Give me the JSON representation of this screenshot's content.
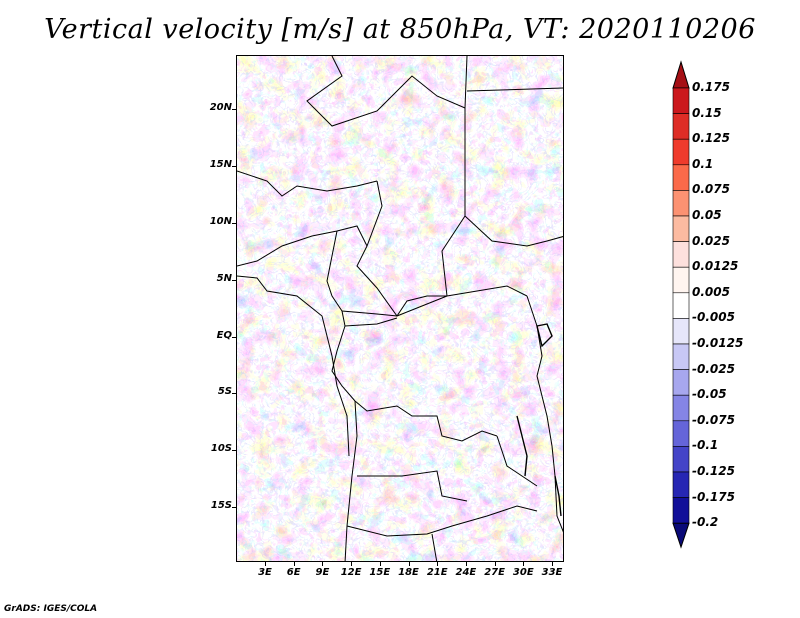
{
  "title": "Vertical velocity [m/s] at 850hPa, VT: 2020110206",
  "credit": "GrADS: IGES/COLA",
  "lat_labels": [
    "20N",
    "15N",
    "10N",
    "5N",
    "EQ",
    "5S",
    "10S",
    "15S"
  ],
  "lon_labels": [
    "3E",
    "6E",
    "9E",
    "12E",
    "15E",
    "18E",
    "21E",
    "24E",
    "27E",
    "30E",
    "33E"
  ],
  "colorbar": {
    "labels": [
      "0.175",
      "0.15",
      "0.125",
      "0.1",
      "0.075",
      "0.05",
      "0.025",
      "0.0125",
      "0.005",
      "-0.005",
      "-0.0125",
      "-0.025",
      "-0.05",
      "-0.075",
      "-0.1",
      "-0.125",
      "-0.175",
      "-0.2"
    ],
    "colors": [
      "#a50f15",
      "#cb181d",
      "#de2d26",
      "#ef3b2c",
      "#fb6a4a",
      "#fc9272",
      "#fcbba1",
      "#fde0dd",
      "#fff5f0",
      "#ffffff",
      "#e6e6fa",
      "#c8c8f5",
      "#a7a7ee",
      "#8585e5",
      "#6565d9",
      "#4444c8",
      "#2626b3",
      "#120f99",
      "#0a0a78"
    ]
  },
  "colors": {
    "positive": "#e8746f",
    "negative": "#7f7fe6",
    "neutral": "#ffffff"
  }
}
